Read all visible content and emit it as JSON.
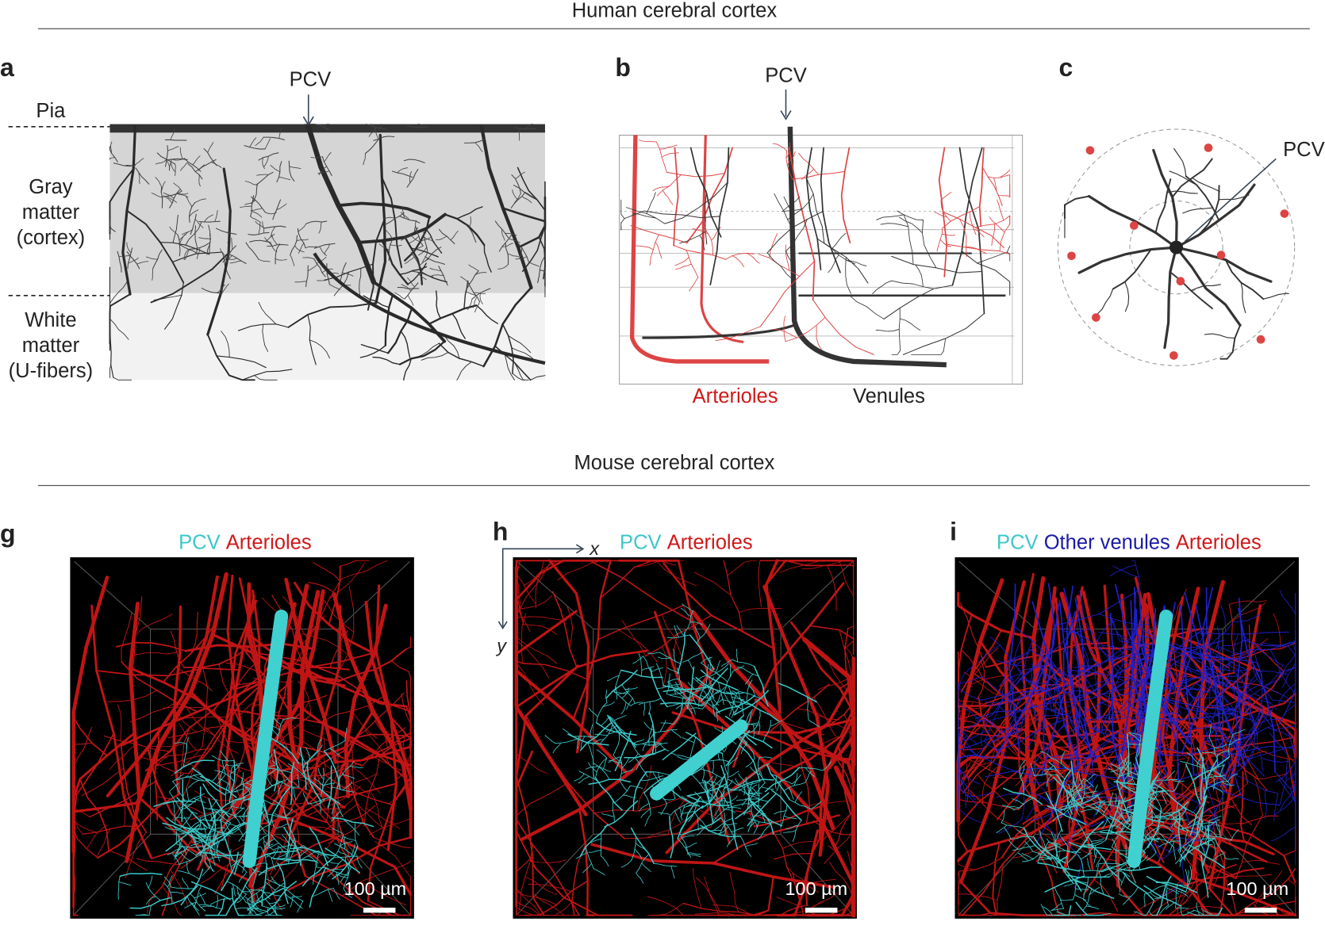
{
  "human": {
    "title": "Human cerebral cortex",
    "panel_a": {
      "letter": "a",
      "pcv": "PCV",
      "pia": "Pia",
      "gray_matter": [
        "Gray",
        "matter",
        "(cortex)"
      ],
      "white_matter": [
        "White",
        "matter",
        "(U-fibers)"
      ]
    },
    "panel_b": {
      "letter": "b",
      "pcv": "PCV",
      "arterioles": "Arterioles",
      "venules": "Venules"
    },
    "panel_c": {
      "letter": "c",
      "pcv": "PCV"
    }
  },
  "mouse": {
    "title": "Mouse cerebral cortex",
    "panel_g": {
      "letter": "g",
      "legend": [
        "PCV",
        "Arterioles"
      ],
      "scale_bar": "100 µm"
    },
    "panel_h": {
      "letter": "h",
      "axis_x": "x",
      "axis_y": "y",
      "legend": [
        "PCV",
        "Arterioles"
      ],
      "scale_bar": "100 µm"
    },
    "panel_i": {
      "letter": "i",
      "legend": [
        "PCV",
        "Other venules",
        "Arterioles"
      ],
      "scale_bar": "100 µm"
    }
  }
}
